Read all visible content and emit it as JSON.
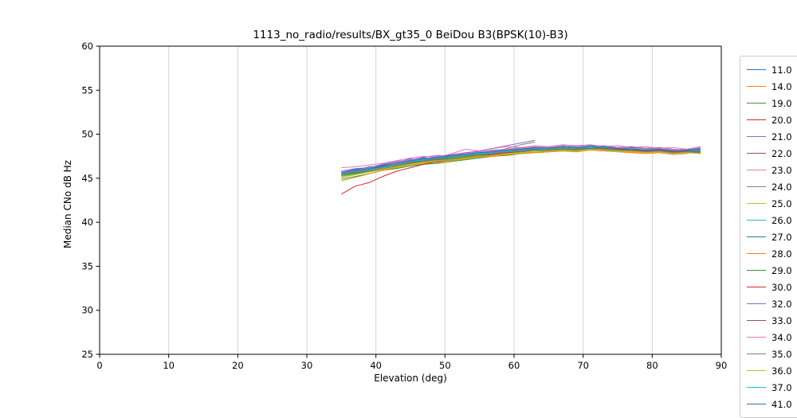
{
  "chart_data": {
    "type": "line",
    "title": "1113_no_radio/results/BX_gt35_0 BeiDou B3(BPSK(10)-B3)",
    "xlabel": "Elevation (deg)",
    "ylabel": "Median CNo dB Hz",
    "xlim": [
      0,
      90
    ],
    "ylim": [
      25,
      60
    ],
    "xticks": [
      0,
      10,
      20,
      30,
      40,
      50,
      60,
      70,
      80,
      90
    ],
    "yticks": [
      25,
      30,
      35,
      40,
      45,
      50,
      55,
      60
    ],
    "grid": "vertical",
    "legend_position": "right-outside",
    "grid_color": "#d0d0d0",
    "x": [
      35,
      37,
      39,
      41,
      43,
      45,
      47,
      49,
      51,
      53,
      55,
      57,
      59,
      61,
      63,
      65,
      67,
      69,
      71,
      73,
      75,
      77,
      79,
      81,
      83,
      85,
      87
    ],
    "series": [
      {
        "name": "11.0",
        "color": "#1f77b4",
        "y": [
          45.7,
          45.9,
          46.3,
          46.4,
          46.8,
          47.2,
          47.0,
          47.5,
          47.6,
          47.8,
          47.9,
          48.2,
          48.1,
          48.4,
          48.5,
          48.4,
          48.6,
          48.5,
          48.7,
          48.6,
          48.5,
          48.4,
          48.3,
          48.4,
          48.2,
          48.1,
          48.3
        ]
      },
      {
        "name": "14.0",
        "color": "#ff7f0e",
        "y": [
          45.1,
          45.4,
          45.8,
          46.0,
          46.2,
          46.7,
          46.9,
          46.8,
          47.1,
          47.3,
          47.4,
          47.6,
          47.8,
          47.9,
          48.0,
          48.1,
          48.2,
          48.1,
          48.3,
          48.2,
          48.1,
          48.0,
          47.9,
          48.0,
          47.8,
          47.9,
          48.4
        ]
      },
      {
        "name": "19.0",
        "color": "#2ca02c",
        "y": [
          44.9,
          45.2,
          45.5,
          45.9,
          46.1,
          46.4,
          46.6,
          46.7,
          46.9,
          47.1,
          47.3,
          47.5,
          47.6,
          47.8,
          47.9,
          48.0,
          48.1,
          48.2,
          48.3,
          48.2,
          48.1,
          48.2,
          48.0,
          48.1,
          47.9,
          48.0,
          47.9
        ]
      },
      {
        "name": "20.0",
        "color": "#d62728",
        "y": [
          45.6,
          45.7,
          46.1,
          46.5,
          46.7,
          47.0,
          47.3,
          47.1,
          47.5,
          47.7,
          47.8,
          48.0,
          48.1,
          48.3,
          48.2,
          48.4,
          48.5,
          48.4,
          48.6,
          48.5,
          48.4,
          48.3,
          48.2,
          48.3,
          48.1,
          48.2,
          48.0
        ]
      },
      {
        "name": "21.0",
        "color": "#9467bd",
        "y": [
          45.8,
          46.1,
          46.2,
          46.6,
          46.9,
          47.1,
          47.4,
          47.6,
          47.5,
          47.9,
          48.0,
          48.2,
          48.3,
          48.5,
          48.4,
          48.6,
          48.5,
          48.7,
          48.6,
          48.7,
          48.5,
          48.6,
          48.4,
          48.5,
          48.3,
          48.2,
          48.4
        ]
      },
      {
        "name": "22.0",
        "color": "#8c564b",
        "y": [
          45.4,
          45.6,
          45.9,
          46.2,
          46.5,
          46.8,
          47.0,
          47.2,
          47.3,
          47.5,
          47.6,
          47.8,
          47.9,
          48.1,
          48.2,
          48.3,
          48.2,
          48.4,
          48.3,
          48.4,
          48.2,
          48.3,
          48.1,
          48.2,
          48.0,
          48.1,
          48.2
        ]
      },
      {
        "name": "23.0",
        "color": "#e377c2",
        "y": [
          46.2,
          46.3,
          46.5,
          46.7,
          47.0,
          47.3,
          47.5,
          47.4,
          47.8,
          48.3,
          48.1,
          48.4,
          48.6,
          48.5,
          48.7,
          48.6,
          48.8,
          48.7,
          48.8,
          48.6,
          48.7,
          48.5,
          48.6,
          48.4,
          48.5,
          48.3,
          48.5
        ]
      },
      {
        "name": "24.0",
        "color": "#7f7f7f",
        "y": [
          45.5,
          45.8,
          46.1,
          46.3,
          46.6,
          46.9,
          47.2,
          47.3,
          47.5,
          47.6,
          47.8,
          48.0,
          48.4,
          48.8,
          49.1
        ]
      },
      {
        "name": "25.0",
        "color": "#bcbd22",
        "y": [
          45.2,
          45.5,
          45.7,
          46.1,
          46.3,
          46.6,
          46.8,
          47.0,
          47.2,
          47.4,
          47.5,
          47.7,
          47.8,
          48.0,
          48.1,
          48.2,
          48.1,
          48.3,
          48.2,
          48.3,
          48.1,
          48.2,
          48.0,
          48.1,
          47.9,
          48.0,
          47.8
        ]
      },
      {
        "name": "26.0",
        "color": "#17becf",
        "y": [
          45.6,
          45.8,
          46.0,
          46.4,
          46.6,
          46.9,
          47.2,
          47.4,
          47.3,
          47.7,
          47.8,
          48.0,
          48.2,
          48.1,
          48.3,
          48.4,
          48.3,
          48.5,
          48.4,
          48.5,
          48.3,
          48.4,
          48.2,
          48.3,
          48.1,
          48.2,
          48.1
        ]
      },
      {
        "name": "27.0",
        "color": "#1f77b4",
        "y": [
          45.7,
          46.0,
          46.2,
          46.5,
          46.8,
          47.0,
          47.3,
          47.2,
          47.6,
          47.8,
          47.9,
          48.1,
          48.2,
          48.4,
          48.3,
          48.5,
          48.6,
          48.5,
          48.7,
          48.6,
          48.4,
          48.5,
          48.3,
          48.4,
          48.2,
          48.3,
          48.2
        ]
      },
      {
        "name": "28.0",
        "color": "#ff7f0e",
        "y": [
          44.7,
          45.1,
          45.5,
          45.9,
          46.2,
          46.5,
          46.7,
          46.9,
          47.0,
          47.2,
          47.4,
          47.5,
          47.7,
          47.8,
          47.9,
          48.0,
          48.1,
          48.0,
          48.2,
          48.1,
          48.0,
          47.9,
          47.8,
          47.9,
          47.7,
          47.8,
          48.2
        ]
      },
      {
        "name": "29.0",
        "color": "#2ca02c",
        "y": [
          45.3,
          45.5,
          45.8,
          46.0,
          46.4,
          46.7,
          46.9,
          47.1,
          47.2,
          47.4,
          47.6,
          47.7,
          47.9,
          48.0,
          48.2,
          48.1,
          48.3,
          48.2,
          48.4,
          48.3,
          48.2,
          48.1,
          48.0,
          48.1,
          47.9,
          48.0,
          47.9
        ]
      },
      {
        "name": "30.0",
        "color": "#d62728",
        "y": [
          43.2,
          44.1,
          44.5,
          45.2,
          45.8,
          46.2,
          46.6,
          46.9,
          47.1,
          47.3,
          47.5,
          47.7,
          47.9,
          48.1,
          48.2,
          48.3,
          48.4,
          48.3,
          48.5,
          48.4,
          48.3,
          48.2,
          48.1,
          48.2,
          48.0,
          48.1,
          48.0
        ]
      },
      {
        "name": "32.0",
        "color": "#9467bd",
        "y": [
          45.4,
          45.7,
          46.0,
          46.4,
          46.7,
          47.0,
          47.2,
          47.5,
          47.7,
          47.9,
          48.1,
          48.4,
          48.7,
          49.0,
          49.3
        ]
      },
      {
        "name": "33.0",
        "color": "#8c564b",
        "y": [
          45.5,
          45.7,
          46.0,
          46.3,
          46.5,
          46.8,
          47.1,
          47.2,
          47.4,
          47.6,
          47.7,
          47.9,
          48.0,
          48.2,
          48.3,
          48.2,
          48.4,
          48.3,
          48.5,
          48.4,
          48.3,
          48.2,
          48.1,
          48.2,
          48.0,
          48.1,
          48.0
        ]
      },
      {
        "name": "34.0",
        "color": "#e377c2",
        "y": [
          45.7,
          45.9,
          46.2,
          46.4,
          46.8,
          47.1,
          47.2,
          47.5,
          47.7,
          47.8,
          48.0,
          48.1,
          48.3,
          48.4,
          48.6,
          48.5,
          48.7,
          48.6,
          48.5,
          48.7,
          48.5,
          48.4,
          48.3,
          48.4,
          48.2,
          48.3,
          48.6
        ]
      },
      {
        "name": "35.0",
        "color": "#7f7f7f",
        "y": [
          45.4,
          45.6,
          45.9,
          46.1,
          46.5,
          46.7,
          47.0,
          47.1,
          47.3,
          47.5,
          47.7,
          47.8,
          48.0,
          48.1,
          48.2,
          48.3,
          48.4,
          48.3,
          48.4,
          48.3,
          48.2,
          48.1,
          48.0,
          48.1,
          47.9,
          48.0,
          47.9
        ]
      },
      {
        "name": "36.0",
        "color": "#bcbd22",
        "y": [
          45.1,
          45.4,
          45.7,
          46.0,
          46.3,
          46.5,
          46.8,
          47.0,
          47.1,
          47.3,
          47.5,
          47.6,
          47.8,
          47.9,
          48.0,
          48.1,
          48.2,
          48.1,
          48.3,
          48.2,
          48.0,
          48.1,
          47.9,
          48.0,
          47.8,
          47.9,
          47.8
        ]
      },
      {
        "name": "37.0",
        "color": "#17becf",
        "y": [
          45.5,
          45.8,
          46.0,
          46.2,
          46.6,
          46.9,
          47.1,
          47.3,
          47.4,
          47.6,
          47.8,
          47.9,
          48.1,
          48.2,
          48.4,
          48.3,
          48.5,
          48.4,
          48.6,
          48.5,
          48.4,
          48.3,
          48.2,
          48.3,
          48.1,
          48.2,
          48.1
        ]
      },
      {
        "name": "41.0",
        "color": "#1f77b4",
        "y": [
          45.6,
          45.9,
          46.1,
          46.4,
          46.7,
          47.0,
          47.2,
          47.4,
          47.6,
          47.7,
          47.9,
          48.0,
          48.2,
          48.3,
          48.5,
          48.4,
          48.6,
          48.5,
          48.4,
          48.6,
          48.4,
          48.3,
          48.2,
          48.3,
          48.1,
          48.2,
          48.3
        ]
      }
    ]
  }
}
